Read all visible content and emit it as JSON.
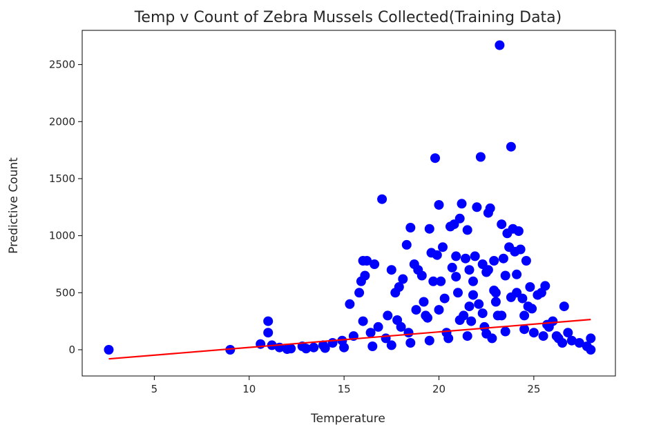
{
  "chart_data": {
    "type": "scatter",
    "title": "Temp v Count of Zebra Mussels Collected(Training Data)",
    "xlabel": "Temperature",
    "ylabel": "Predictive Count",
    "xlim": [
      1.2,
      29.3
    ],
    "ylim": [
      -230,
      2800
    ],
    "xticks": [
      5,
      10,
      15,
      20,
      25
    ],
    "yticks": [
      0,
      500,
      1000,
      1500,
      2000,
      2500
    ],
    "grid": false,
    "legend": "none",
    "colors": {
      "points": "#0000ff",
      "fit_line": "#ff0000",
      "axes": "#000000"
    },
    "series": [
      {
        "type": "scatter",
        "x": [
          2.6,
          9.0,
          10.6,
          11.0,
          11.0,
          11.2,
          11.6,
          12.2,
          12.8,
          13.4,
          13.9,
          14.4,
          14.9,
          15.3,
          15.5,
          15.8,
          15.9,
          16.0,
          16.1,
          16.2,
          16.4,
          16.6,
          16.8,
          17.0,
          17.2,
          17.5,
          17.7,
          17.9,
          18.1,
          18.3,
          18.4,
          18.5,
          18.7,
          18.9,
          19.1,
          19.3,
          19.5,
          19.6,
          19.8,
          19.9,
          20.0,
          20.1,
          20.2,
          20.4,
          20.6,
          20.7,
          20.8,
          20.9,
          21.0,
          21.1,
          21.2,
          21.3,
          21.4,
          21.5,
          21.6,
          21.7,
          21.8,
          21.9,
          22.0,
          22.1,
          22.2,
          22.3,
          22.4,
          22.5,
          22.6,
          22.7,
          22.8,
          22.9,
          23.0,
          23.1,
          23.2,
          23.3,
          23.4,
          23.5,
          23.6,
          23.7,
          23.8,
          23.9,
          24.0,
          24.1,
          24.2,
          24.3,
          24.4,
          24.5,
          24.6,
          24.8,
          25.0,
          25.2,
          25.4,
          25.6,
          25.8,
          26.0,
          26.3,
          26.6,
          26.8,
          27.0,
          27.4,
          27.8,
          28.0,
          28.0,
          12.0,
          13.0,
          14.0,
          15.0,
          16.5,
          17.5,
          18.5,
          19.5,
          20.5,
          21.5,
          22.5,
          23.5,
          24.5,
          25.5,
          26.5,
          16.0,
          17.3,
          18.8,
          19.2,
          20.3,
          21.8,
          22.9,
          23.8,
          24.7,
          19.7,
          20.9,
          22.6,
          24.1,
          18.0,
          21.1,
          23.3,
          20.0,
          21.6,
          23.0,
          19.4,
          22.3,
          24.9,
          25.7,
          17.8,
          26.2
        ],
        "y": [
          0,
          0,
          50,
          150,
          250,
          40,
          20,
          10,
          30,
          20,
          40,
          60,
          80,
          400,
          120,
          500,
          600,
          780,
          650,
          780,
          150,
          750,
          200,
          1320,
          100,
          700,
          500,
          550,
          620,
          920,
          150,
          1070,
          750,
          700,
          650,
          300,
          1060,
          850,
          1680,
          830,
          1270,
          600,
          900,
          150,
          1080,
          720,
          1100,
          820,
          500,
          1150,
          1280,
          300,
          800,
          1050,
          700,
          250,
          600,
          820,
          1250,
          400,
          1690,
          750,
          200,
          680,
          1200,
          1240,
          100,
          780,
          500,
          300,
          2670,
          1100,
          800,
          650,
          1020,
          900,
          1780,
          1060,
          860,
          500,
          1040,
          880,
          450,
          300,
          780,
          550,
          150,
          480,
          500,
          560,
          200,
          250,
          100,
          380,
          150,
          80,
          60,
          30,
          0,
          100,
          5,
          10,
          15,
          20,
          30,
          40,
          60,
          80,
          100,
          120,
          140,
          160,
          180,
          120,
          60,
          250,
          300,
          350,
          420,
          450,
          480,
          520,
          460,
          380,
          600,
          640,
          700,
          660,
          200,
          260,
          300,
          350,
          380,
          420,
          280,
          320,
          360,
          220,
          260,
          120
        ]
      },
      {
        "type": "line",
        "x": [
          2.6,
          28.0
        ],
        "y": [
          -80,
          265
        ]
      }
    ]
  }
}
